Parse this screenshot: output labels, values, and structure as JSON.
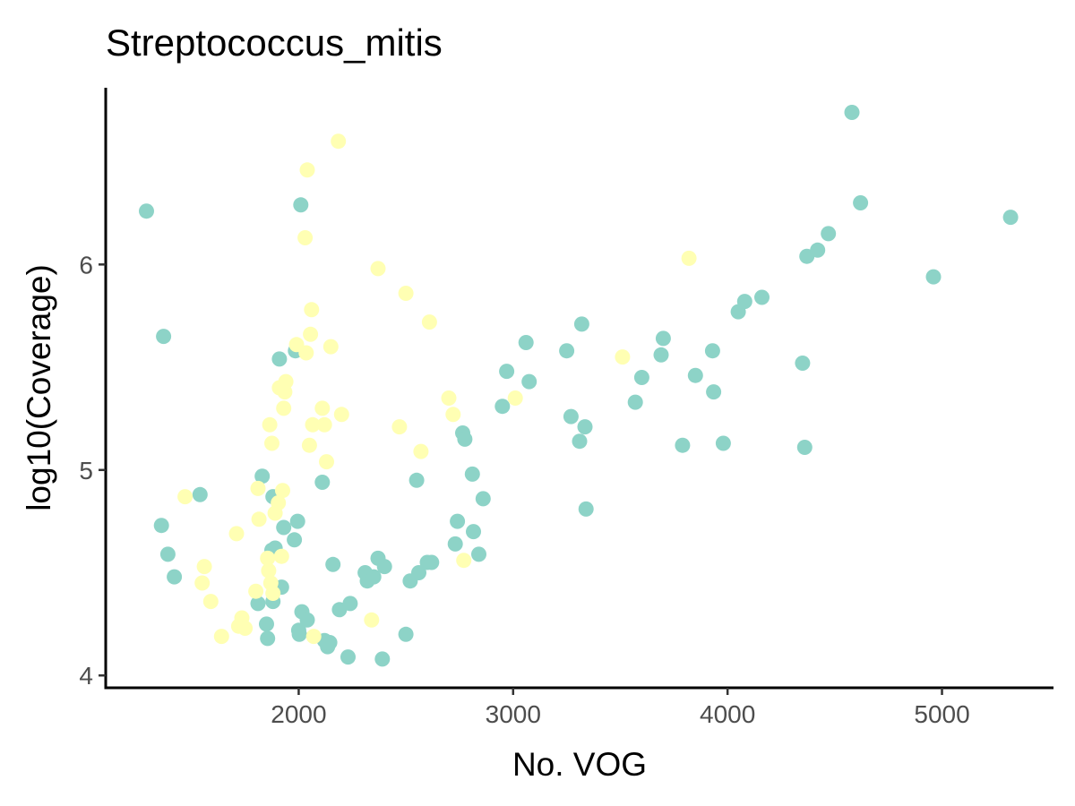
{
  "chart_data": {
    "type": "scatter",
    "title": "Streptococcus_mitis",
    "xlabel": "No. VOG",
    "ylabel": "log10(Coverage)",
    "xlim": [
      1100,
      5520
    ],
    "ylim": [
      3.94,
      6.86
    ],
    "x_ticks": [
      2000,
      3000,
      4000,
      5000
    ],
    "y_ticks": [
      4,
      5,
      6
    ],
    "grid": false,
    "legend": "none",
    "series": [
      {
        "color": "#8dd3c7",
        "points": [
          [
            1290,
            6.26
          ],
          [
            1370,
            5.65
          ],
          [
            1360,
            4.73
          ],
          [
            1390,
            4.59
          ],
          [
            1420,
            4.48
          ],
          [
            1540,
            4.88
          ],
          [
            1810,
            4.35
          ],
          [
            1830,
            4.97
          ],
          [
            1850,
            4.25
          ],
          [
            1855,
            4.18
          ],
          [
            1875,
            4.61
          ],
          [
            1880,
            4.87
          ],
          [
            1880,
            4.36
          ],
          [
            1890,
            4.62
          ],
          [
            1910,
            5.54
          ],
          [
            1920,
            4.43
          ],
          [
            1930,
            4.72
          ],
          [
            1980,
            4.66
          ],
          [
            1985,
            5.58
          ],
          [
            1995,
            4.75
          ],
          [
            2000,
            4.22
          ],
          [
            2003,
            4.2
          ],
          [
            2010,
            6.29
          ],
          [
            2015,
            4.31
          ],
          [
            2040,
            4.27
          ],
          [
            2110,
            4.94
          ],
          [
            2120,
            4.17
          ],
          [
            2135,
            4.14
          ],
          [
            2145,
            4.16
          ],
          [
            2160,
            4.54
          ],
          [
            2190,
            4.32
          ],
          [
            2230,
            4.09
          ],
          [
            2240,
            4.35
          ],
          [
            2310,
            4.5
          ],
          [
            2320,
            4.46
          ],
          [
            2350,
            4.48
          ],
          [
            2370,
            4.57
          ],
          [
            2390,
            4.08
          ],
          [
            2400,
            4.53
          ],
          [
            2500,
            4.2
          ],
          [
            2520,
            4.46
          ],
          [
            2550,
            4.95
          ],
          [
            2560,
            4.5
          ],
          [
            2600,
            4.55
          ],
          [
            2620,
            4.55
          ],
          [
            2730,
            4.64
          ],
          [
            2740,
            4.75
          ],
          [
            2765,
            5.18
          ],
          [
            2775,
            5.15
          ],
          [
            2810,
            4.98
          ],
          [
            2815,
            4.7
          ],
          [
            2840,
            4.59
          ],
          [
            2860,
            4.86
          ],
          [
            2950,
            5.31
          ],
          [
            2970,
            5.48
          ],
          [
            3060,
            5.62
          ],
          [
            3075,
            5.43
          ],
          [
            3250,
            5.58
          ],
          [
            3270,
            5.26
          ],
          [
            3310,
            5.14
          ],
          [
            3320,
            5.71
          ],
          [
            3335,
            5.21
          ],
          [
            3340,
            4.81
          ],
          [
            3570,
            5.33
          ],
          [
            3600,
            5.45
          ],
          [
            3690,
            5.56
          ],
          [
            3700,
            5.64
          ],
          [
            3790,
            5.12
          ],
          [
            3850,
            5.46
          ],
          [
            3930,
            5.58
          ],
          [
            3935,
            5.38
          ],
          [
            3980,
            5.13
          ],
          [
            4050,
            5.77
          ],
          [
            4080,
            5.82
          ],
          [
            4160,
            5.84
          ],
          [
            4350,
            5.52
          ],
          [
            4360,
            5.11
          ],
          [
            4370,
            6.04
          ],
          [
            4420,
            6.07
          ],
          [
            4470,
            6.15
          ],
          [
            4580,
            6.74
          ],
          [
            4620,
            6.3
          ],
          [
            4960,
            5.94
          ],
          [
            5320,
            6.23
          ]
        ]
      },
      {
        "color": "#ffffb3",
        "points": [
          [
            1470,
            4.87
          ],
          [
            1550,
            4.45
          ],
          [
            1560,
            4.53
          ],
          [
            1590,
            4.36
          ],
          [
            1640,
            4.19
          ],
          [
            1710,
            4.69
          ],
          [
            1720,
            4.24
          ],
          [
            1735,
            4.28
          ],
          [
            1750,
            4.23
          ],
          [
            1800,
            4.41
          ],
          [
            1810,
            4.91
          ],
          [
            1815,
            4.76
          ],
          [
            1855,
            4.57
          ],
          [
            1860,
            4.51
          ],
          [
            1865,
            5.22
          ],
          [
            1870,
            4.45
          ],
          [
            1875,
            5.13
          ],
          [
            1880,
            4.4
          ],
          [
            1890,
            4.79
          ],
          [
            1905,
            4.84
          ],
          [
            1910,
            5.4
          ],
          [
            1920,
            4.58
          ],
          [
            1925,
            4.9
          ],
          [
            1930,
            5.3
          ],
          [
            1935,
            5.38
          ],
          [
            1940,
            5.43
          ],
          [
            1990,
            5.61
          ],
          [
            2030,
            6.13
          ],
          [
            2035,
            5.57
          ],
          [
            2040,
            6.46
          ],
          [
            2050,
            5.12
          ],
          [
            2055,
            5.66
          ],
          [
            2060,
            5.78
          ],
          [
            2065,
            5.22
          ],
          [
            2070,
            4.19
          ],
          [
            2110,
            5.3
          ],
          [
            2120,
            5.22
          ],
          [
            2130,
            5.04
          ],
          [
            2150,
            5.6
          ],
          [
            2185,
            6.6
          ],
          [
            2200,
            5.27
          ],
          [
            2340,
            4.27
          ],
          [
            2370,
            5.98
          ],
          [
            2470,
            5.21
          ],
          [
            2500,
            5.86
          ],
          [
            2570,
            5.09
          ],
          [
            2610,
            5.72
          ],
          [
            2700,
            5.35
          ],
          [
            2720,
            5.27
          ],
          [
            2770,
            4.56
          ],
          [
            3010,
            5.35
          ],
          [
            3510,
            5.55
          ],
          [
            3820,
            6.03
          ]
        ]
      }
    ]
  }
}
